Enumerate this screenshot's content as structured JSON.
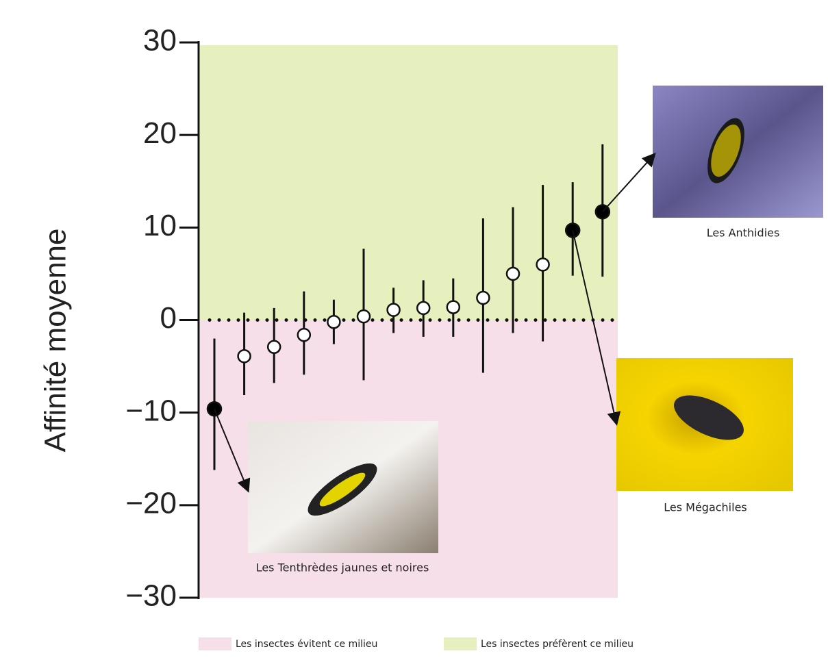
{
  "chart_data": {
    "type": "dot",
    "ylabel": "Affinité moyenne",
    "ylim": [
      -30,
      30
    ],
    "yticks": [
      {
        "value": -30,
        "label": "−30"
      },
      {
        "value": -20,
        "label": "−20"
      },
      {
        "value": -10,
        "label": "−10"
      },
      0,
      10,
      20,
      30
    ],
    "hline": 0,
    "categories": [
      null,
      null,
      null,
      null,
      null,
      null,
      null,
      null,
      null,
      null,
      null,
      null,
      null,
      null
    ],
    "values": [
      -9.6,
      -3.9,
      -2.9,
      -1.6,
      -0.2,
      0.4,
      1.1,
      1.3,
      1.4,
      2.4,
      5.0,
      6.0,
      9.7,
      11.7
    ],
    "lower": [
      -16.2,
      -8.1,
      -6.8,
      -5.9,
      -2.6,
      -6.5,
      -1.4,
      -1.8,
      -1.8,
      -5.7,
      -1.4,
      -2.3,
      4.8,
      4.7
    ],
    "upper": [
      -2.0,
      0.8,
      1.3,
      3.1,
      2.2,
      7.7,
      3.5,
      4.3,
      4.5,
      11.0,
      12.2,
      14.6,
      14.9,
      19.0
    ],
    "filled": [
      true,
      false,
      false,
      false,
      false,
      false,
      false,
      false,
      false,
      false,
      false,
      false,
      true,
      true
    ],
    "bands": [
      {
        "name": "Les insectes évitent ce milieu",
        "color": "#f6dfe8",
        "range": [
          -30,
          0
        ]
      },
      {
        "name": "Les insectes préfèrent ce milieu",
        "color": "#e6f0bf",
        "range": [
          0,
          30
        ]
      }
    ],
    "annotations": [
      "Les Tenthrèdes jaunes et noires",
      "Les Mégachiles",
      "Les Anthidies"
    ]
  }
}
